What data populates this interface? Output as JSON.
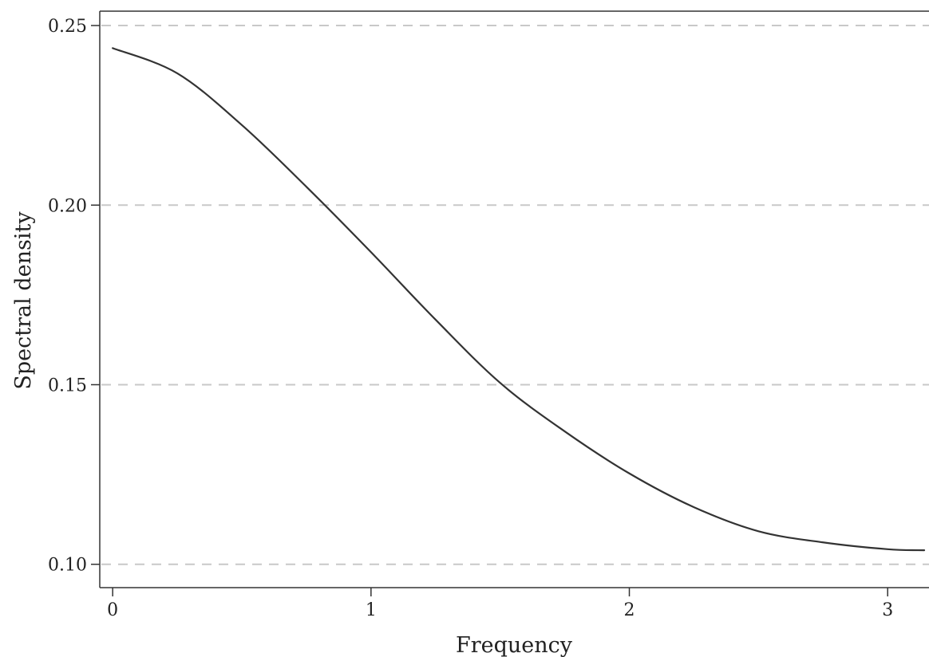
{
  "chart_data": {
    "type": "line",
    "xlabel": "Frequency",
    "ylabel": "Spectral density",
    "xlim": [
      -0.05,
      3.16
    ],
    "ylim": [
      0.0935,
      0.254
    ],
    "xticks": [
      0,
      1,
      2,
      3
    ],
    "xtick_labels": [
      "0",
      "1",
      "2",
      "3"
    ],
    "yticks": [
      0.1,
      0.15,
      0.2,
      0.25
    ],
    "ytick_labels": [
      "0.10",
      "0.15",
      "0.20",
      "0.25"
    ],
    "grid": "horizontal-dashed",
    "legend": "none",
    "colors": {
      "line": "#333333",
      "grid": "#c8c8c8",
      "axis": "#333333"
    },
    "series": [
      {
        "x": [
          0,
          0.25,
          0.5,
          0.75,
          1.0,
          1.25,
          1.5,
          1.75,
          2.0,
          2.25,
          2.5,
          2.75,
          3.0,
          3.1416
        ],
        "y": [
          0.2437,
          0.2367,
          0.2223,
          0.2051,
          0.1869,
          0.1681,
          0.1505,
          0.137,
          0.1253,
          0.1159,
          0.1092,
          0.1061,
          0.1042,
          0.1039
        ]
      }
    ]
  }
}
